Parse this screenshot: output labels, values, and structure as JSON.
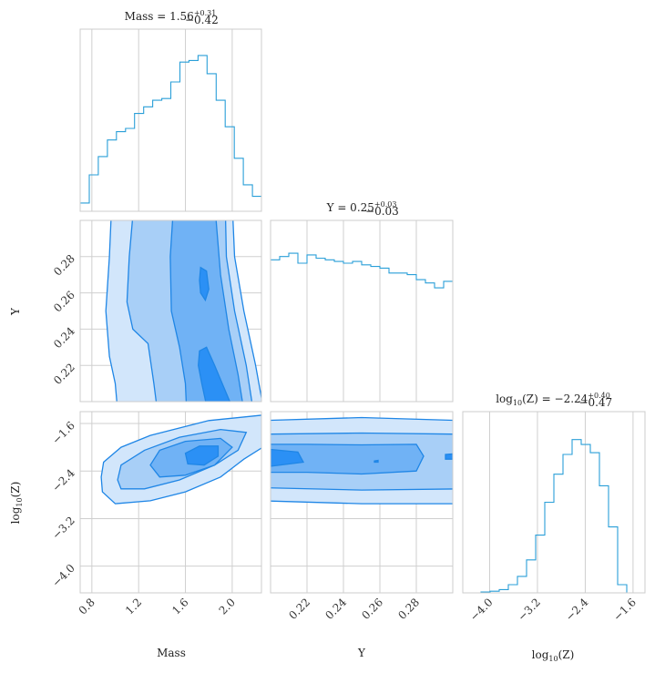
{
  "chart_data": {
    "type": "corner",
    "parameters": [
      {
        "key": "mass",
        "label": "Mass",
        "title": {
          "prefix": "Mass = ",
          "value": "1.56",
          "plus": "+0.31",
          "minus": "−0.42"
        },
        "range": [
          0.7,
          2.25
        ],
        "ticks": [
          0.8,
          1.2,
          1.6,
          2.0
        ],
        "tick_labels": [
          "0.8",
          "1.2",
          "1.6",
          "2.0"
        ]
      },
      {
        "key": "y",
        "label": "Y",
        "title": {
          "prefix": "Y = ",
          "value": "0.25",
          "plus": "+0.03",
          "minus": "−0.03"
        },
        "range": [
          0.2,
          0.3
        ],
        "ticks": [
          0.22,
          0.24,
          0.26,
          0.28
        ],
        "tick_labels": [
          "0.22",
          "0.24",
          "0.26",
          "0.28"
        ]
      },
      {
        "key": "logz",
        "label": "log10(Z)",
        "label_base": "log",
        "label_sub": "10",
        "label_rest": "(Z)",
        "title": {
          "prefix": "log10(Z) = ",
          "value": "−2.24",
          "plus": "+0.40",
          "minus": "−0.47"
        },
        "range": [
          -4.45,
          -1.4
        ],
        "ticks": [
          -4.0,
          -3.2,
          -2.4,
          -1.6
        ],
        "tick_labels": [
          "−4.0",
          "−3.2",
          "−2.4",
          "−1.6"
        ]
      }
    ],
    "histograms": {
      "mass": {
        "edges": [
          0.7,
          0.778,
          0.855,
          0.933,
          1.01,
          1.088,
          1.165,
          1.243,
          1.32,
          1.398,
          1.475,
          1.553,
          1.63,
          1.708,
          1.785,
          1.863,
          1.94,
          2.018,
          2.095,
          2.173,
          2.25
        ],
        "counts": [
          0.05,
          0.22,
          0.33,
          0.43,
          0.48,
          0.5,
          0.59,
          0.63,
          0.67,
          0.68,
          0.78,
          0.9,
          0.91,
          0.94,
          0.83,
          0.67,
          0.51,
          0.32,
          0.16,
          0.09
        ]
      },
      "y": {
        "edges": [
          0.2,
          0.205,
          0.21,
          0.215,
          0.22,
          0.225,
          0.23,
          0.235,
          0.24,
          0.245,
          0.25,
          0.255,
          0.26,
          0.265,
          0.27,
          0.275,
          0.28,
          0.285,
          0.29,
          0.295,
          0.3
        ],
        "counts": [
          0.86,
          0.88,
          0.9,
          0.84,
          0.89,
          0.87,
          0.86,
          0.85,
          0.84,
          0.85,
          0.83,
          0.82,
          0.81,
          0.78,
          0.78,
          0.77,
          0.74,
          0.72,
          0.69,
          0.73
        ]
      },
      "logz": {
        "edges": [
          -4.45,
          -4.297,
          -4.145,
          -3.992,
          -3.84,
          -3.688,
          -3.535,
          -3.382,
          -3.23,
          -3.078,
          -2.925,
          -2.772,
          -2.62,
          -2.468,
          -2.315,
          -2.163,
          -2.01,
          -1.858,
          -1.705,
          -1.553,
          -1.4
        ],
        "counts": [
          0,
          0,
          0.005,
          0.01,
          0.02,
          0.05,
          0.1,
          0.2,
          0.35,
          0.55,
          0.72,
          0.84,
          0.93,
          0.9,
          0.85,
          0.65,
          0.4,
          0.05,
          0,
          0
        ]
      }
    },
    "contour_levels": [
      "outer",
      "mid",
      "inner",
      "peak"
    ],
    "contour_fills": [
      "#d2e6fb",
      "#a8cff7",
      "#70b2f5",
      "#2b90f5"
    ],
    "contour_line": "#1f86e6",
    "hist_color": "#2a9fd8",
    "grid": true
  }
}
